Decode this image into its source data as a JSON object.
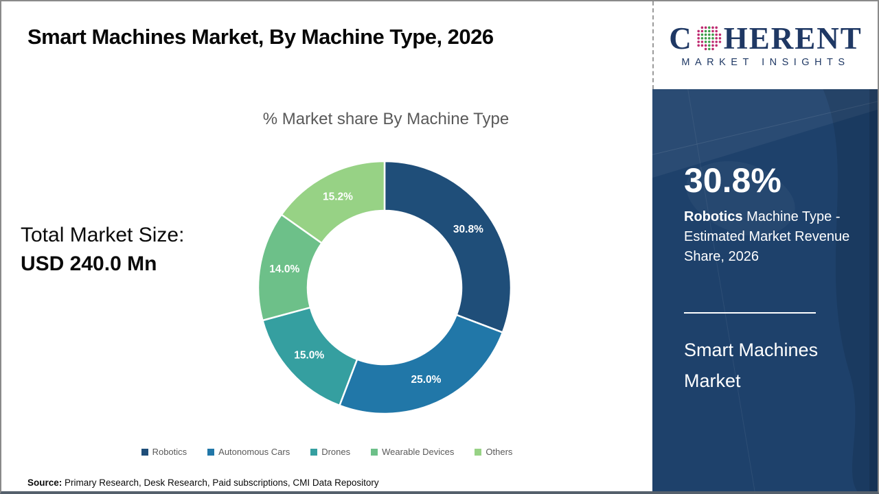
{
  "header": {
    "title": "Smart Machines Market, By Machine Type, 2026"
  },
  "logo": {
    "main_prefix": "C",
    "main_suffix": "HERENT",
    "sub": "MARKET INSIGHTS",
    "navy": "#1F3864",
    "globe_dot_green": "#3C9C49",
    "globe_dot_magenta": "#BE2A70"
  },
  "chart_data": {
    "type": "pie",
    "donut": true,
    "title": "% Market share By Machine Type",
    "start_angle_deg": 0,
    "direction": "clockwise",
    "categories": [
      "Robotics",
      "Autonomous Cars",
      "Drones",
      "Wearable Devices",
      "Others"
    ],
    "values": [
      30.8,
      25.0,
      15.0,
      14.0,
      15.2
    ],
    "labels": [
      "30.8%",
      "25.0%",
      "15.0%",
      "14.0%",
      "15.2%"
    ],
    "colors": [
      "#1F4E79",
      "#2177A8",
      "#359FA0",
      "#6DC089",
      "#97D285"
    ],
    "legend_position": "bottom",
    "label_color": "#FFFFFF"
  },
  "left_panel": {
    "total_label": "Total Market Size:",
    "total_value": "USD 240.0 Mn"
  },
  "sidebar": {
    "bg_color": "#1E416B",
    "highlight_value": "30.8%",
    "highlight_bold": "Robotics",
    "highlight_rest": " Machine Type - Estimated Market Revenue Share, 2026",
    "product_name": "Smart Machines Market"
  },
  "footer": {
    "source_label": "Source:",
    "source_text": " Primary Research, Desk Research, Paid subscriptions, CMI Data Repository"
  }
}
